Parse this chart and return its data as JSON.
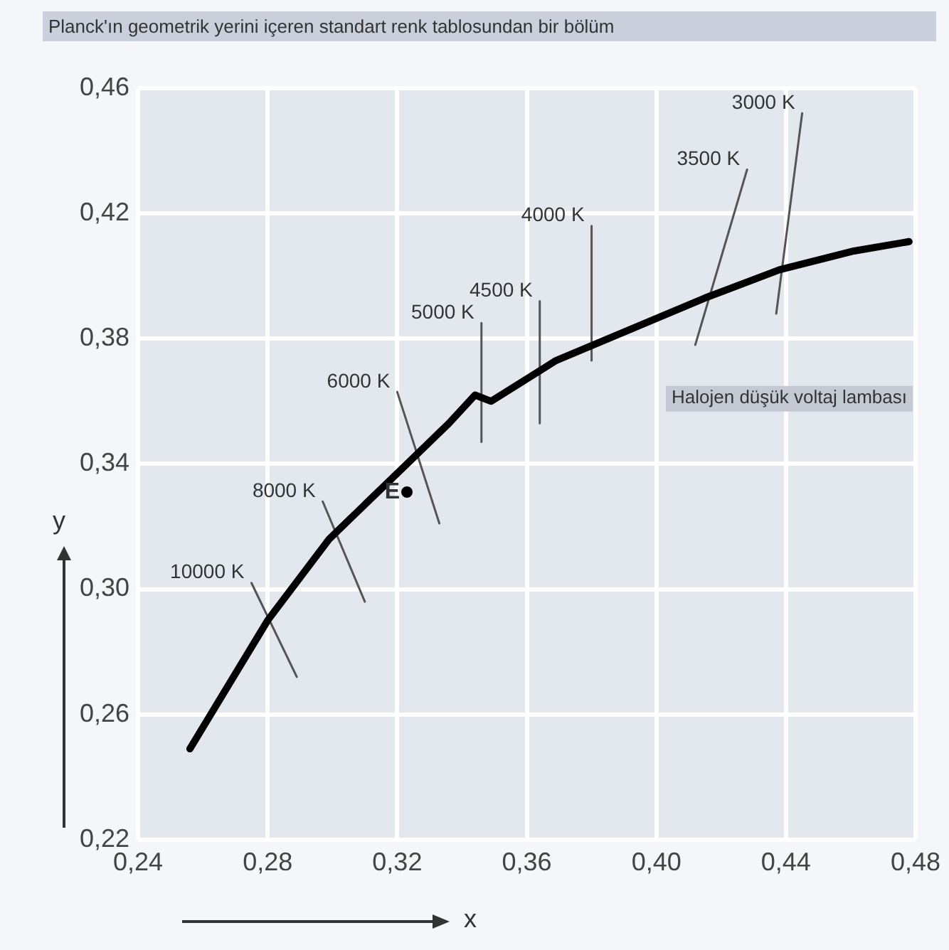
{
  "chart_data": {
    "type": "line",
    "title": "Planck'ın geometrik yerini içeren standart renk tablosundan bir bölüm",
    "xlabel": "x",
    "ylabel": "y",
    "xlim": [
      0.24,
      0.48
    ],
    "ylim": [
      0.22,
      0.46
    ],
    "xticks": [
      {
        "value": 0.24,
        "label": "0,24"
      },
      {
        "value": 0.28,
        "label": "0,28"
      },
      {
        "value": 0.32,
        "label": "0,32"
      },
      {
        "value": 0.36,
        "label": "0,36"
      },
      {
        "value": 0.4,
        "label": "0,40"
      },
      {
        "value": 0.44,
        "label": "0,44"
      },
      {
        "value": 0.48,
        "label": "0,48"
      }
    ],
    "yticks": [
      {
        "value": 0.22,
        "label": "0,22"
      },
      {
        "value": 0.26,
        "label": "0,26"
      },
      {
        "value": 0.3,
        "label": "0,30"
      },
      {
        "value": 0.34,
        "label": "0,34"
      },
      {
        "value": 0.38,
        "label": "0,38"
      },
      {
        "value": 0.42,
        "label": "0,42"
      },
      {
        "value": 0.46,
        "label": "0,46"
      }
    ],
    "grid": true,
    "legend": false,
    "series": [
      {
        "color": "#000000",
        "x": [
          0.256,
          0.28,
          0.299,
          0.322,
          0.336,
          0.344,
          0.349,
          0.369,
          0.392,
          0.415,
          0.438,
          0.461,
          0.478
        ],
        "values": [
          0.249,
          0.29,
          0.316,
          0.339,
          0.353,
          0.362,
          0.36,
          0.373,
          0.383,
          0.393,
          0.402,
          0.408,
          0.411
        ]
      },
      {
        "color": "#555555",
        "x": [
          0.275,
          0.289
        ],
        "values": [
          0.302,
          0.272
        ]
      },
      {
        "color": "#555555",
        "x": [
          0.297,
          0.31
        ],
        "values": [
          0.328,
          0.296
        ]
      },
      {
        "color": "#555555",
        "x": [
          0.32,
          0.333
        ],
        "values": [
          0.363,
          0.321
        ]
      },
      {
        "color": "#555555",
        "x": [
          0.346,
          0.346
        ],
        "values": [
          0.385,
          0.347
        ]
      },
      {
        "color": "#555555",
        "x": [
          0.364,
          0.364
        ],
        "values": [
          0.392,
          0.353
        ]
      },
      {
        "color": "#555555",
        "x": [
          0.38,
          0.38
        ],
        "values": [
          0.416,
          0.373
        ]
      },
      {
        "color": "#555555",
        "x": [
          0.428,
          0.412
        ],
        "values": [
          0.434,
          0.378
        ]
      },
      {
        "color": "#555555",
        "x": [
          0.445,
          0.437
        ],
        "values": [
          0.452,
          0.388
        ]
      },
      {
        "type": "scatter",
        "color": "#000000",
        "x": [
          0.323
        ],
        "values": [
          0.331
        ]
      }
    ],
    "annotations": [
      {
        "text": "10000 K",
        "x": 0.275,
        "y": 0.302
      },
      {
        "text": "8000 K",
        "x": 0.297,
        "y": 0.328
      },
      {
        "text": "6000 K",
        "x": 0.32,
        "y": 0.363
      },
      {
        "text": "5000 K",
        "x": 0.346,
        "y": 0.385
      },
      {
        "text": "4500 K",
        "x": 0.364,
        "y": 0.392
      },
      {
        "text": "4000 K",
        "x": 0.38,
        "y": 0.416
      },
      {
        "text": "3500 K",
        "x": 0.428,
        "y": 0.434
      },
      {
        "text": "3000 K",
        "x": 0.445,
        "y": 0.452
      },
      {
        "text": "E",
        "x": 0.323,
        "y": 0.331
      },
      "Halojen düşük voltaj lambası"
    ]
  }
}
